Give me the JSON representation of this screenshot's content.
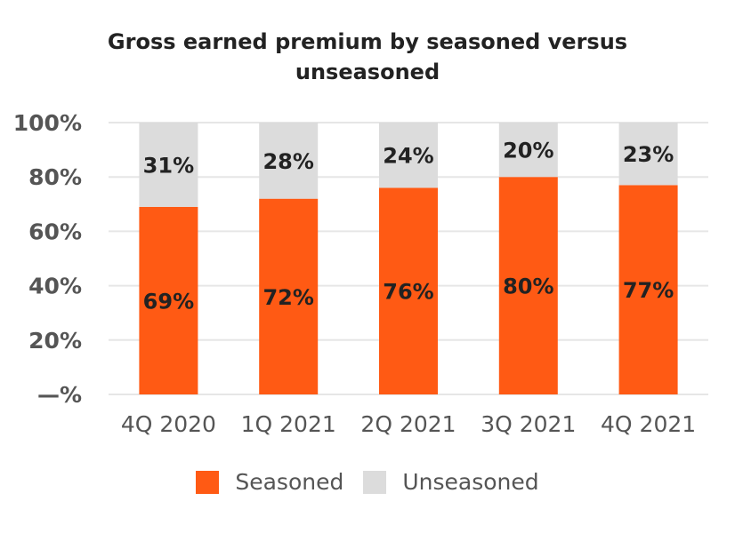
{
  "chart_data": {
    "type": "bar",
    "stacked": true,
    "title": "Gross earned premium by seasoned versus unseasoned",
    "title_lines": [
      "Gross earned premium by seasoned versus",
      "unseasoned"
    ],
    "categories": [
      "4Q 2020",
      "1Q 2021",
      "2Q 2021",
      "3Q 2021",
      "4Q 2021"
    ],
    "series": [
      {
        "name": "Seasoned",
        "values": [
          69,
          72,
          76,
          80,
          77
        ],
        "labels": [
          "69%",
          "72%",
          "76%",
          "80%",
          "77%"
        ],
        "color": "#FF5A14"
      },
      {
        "name": "Unseasoned",
        "values": [
          31,
          28,
          24,
          20,
          23
        ],
        "labels": [
          "31%",
          "28%",
          "24%",
          "20%",
          "23%"
        ],
        "color": "#DCDCDC"
      }
    ],
    "ylim": [
      0,
      100
    ],
    "yticks": [
      0,
      20,
      40,
      60,
      80,
      100
    ],
    "ytick_labels": [
      "—%",
      "20%",
      "40%",
      "60%",
      "80%",
      "100%"
    ],
    "grid": true,
    "legend": "bottom"
  }
}
